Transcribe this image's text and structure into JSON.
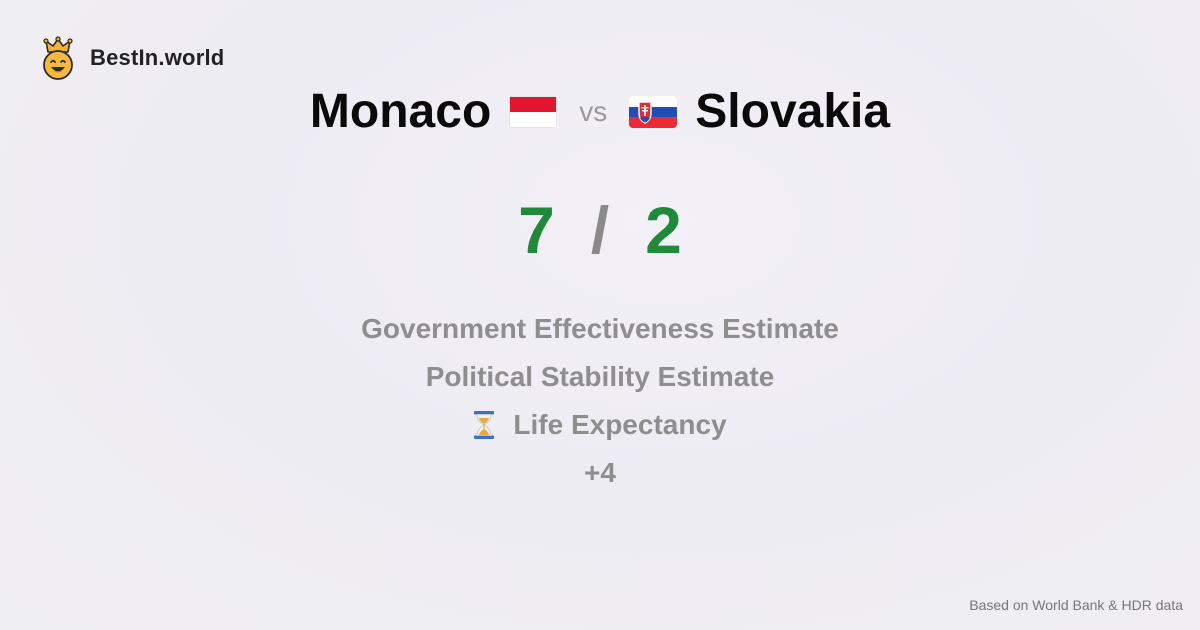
{
  "brand": {
    "name": "BestIn.world",
    "logo_icon": "crown-smiley-icon"
  },
  "comparison": {
    "left_country": "Monaco",
    "vs_label": "vs",
    "right_country": "Slovakia",
    "left_flag_icon": "monaco-flag-icon",
    "right_flag_icon": "slovakia-flag-icon"
  },
  "score": {
    "left": "7",
    "separator": "/",
    "right": "2",
    "color": "#1f8a3a"
  },
  "metrics": {
    "items": [
      {
        "label": "Government Effectiveness Estimate"
      },
      {
        "label": "Political Stability Estimate"
      },
      {
        "label": "Life Expectancy",
        "icon": "hourglass-icon"
      }
    ],
    "more": "+4"
  },
  "footer": {
    "source": "Based on World Bank & HDR data"
  }
}
